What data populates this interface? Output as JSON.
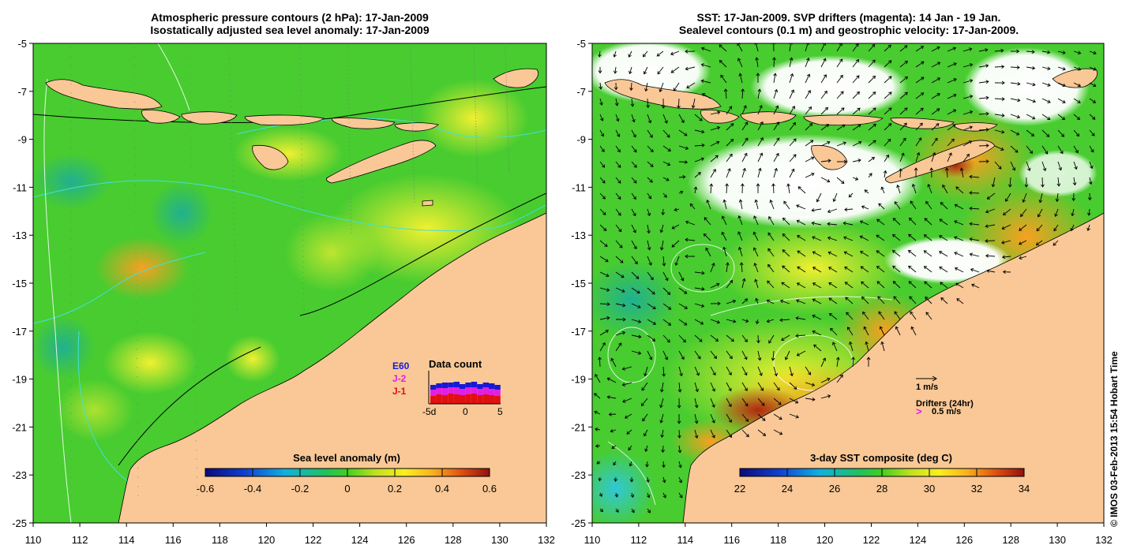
{
  "left_panel": {
    "title_line1": "Atmospheric pressure contours (2 hPa): 17-Jan-2009",
    "title_line2": "Isostatically adjusted sea level anomaly: 17-Jan-2009",
    "colorbar_label": "Sea level anomaly (m)",
    "colorbar_ticks": [
      "-0.6",
      "-0.4",
      "-0.2",
      "0",
      "0.2",
      "0.4",
      "0.6"
    ],
    "colorbar_range": [
      -0.6,
      0.6
    ],
    "inset": {
      "title": "Data count",
      "legend": [
        {
          "label": "E60",
          "color": "#1818d8"
        },
        {
          "label": "J-2",
          "color": "#e020e0"
        },
        {
          "label": "J-1",
          "color": "#e01010"
        }
      ],
      "x_ticks": [
        "-5d",
        "0",
        "5"
      ]
    }
  },
  "right_panel": {
    "title_line1": "SST: 17-Jan-2009. SVP drifters (magenta): 14 Jan - 19 Jan.",
    "title_line2": "Sealevel contours (0.1 m) and geostrophic velocity: 17-Jan-2009.",
    "colorbar_label": "3-day SST composite (deg C)",
    "colorbar_ticks": [
      "22",
      "24",
      "26",
      "28",
      "30",
      "32",
      "34"
    ],
    "colorbar_range": [
      22,
      34
    ],
    "velocity_scale_label": "1 m/s",
    "drifters_label": "Drifters (24hr)",
    "drifters_scale_label": "0.5 m/s"
  },
  "x_ticks": [
    "110",
    "112",
    "114",
    "116",
    "118",
    "120",
    "122",
    "124",
    "126",
    "128",
    "130",
    "132"
  ],
  "y_ticks": [
    "-5",
    "-7",
    "-9",
    "-11",
    "-13",
    "-15",
    "-17",
    "-19",
    "-21",
    "-23",
    "-25"
  ],
  "lon_range": [
    110,
    132
  ],
  "lat_range": [
    -25,
    -5
  ],
  "credit": "© IMOS 03-Feb-2013 15:54 Hobart Time",
  "colors": {
    "land": "#f9c896",
    "contour_cyan": "#40e0e0",
    "drifter_magenta": "#e020e0"
  }
}
